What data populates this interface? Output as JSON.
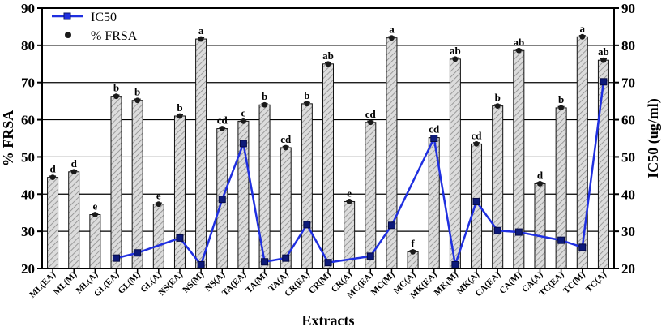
{
  "chart_data": {
    "type": "bar",
    "xlabel": "Extracts",
    "ylabel": "% FRSA",
    "y2label": "IC50 (ug/ml)",
    "ylim": [
      20,
      90
    ],
    "y2lim": [
      20,
      90
    ],
    "yticks": [
      "20",
      "30",
      "40",
      "50",
      "60",
      "70",
      "80",
      "90"
    ],
    "y2ticks": [
      "20",
      "30",
      "40",
      "50",
      "60",
      "70",
      "80",
      "90"
    ],
    "grid": true,
    "legend_placement": "top-left",
    "categories": [
      "ML(EA)",
      "ML(M)",
      "ML(A)",
      "GL(EA)",
      "GL(M)",
      "GL(A)",
      "NS(EA)",
      "NS(M)",
      "NS(A)",
      "TA(EA)",
      "TA(M)",
      "TA(A)",
      "CR(EA)",
      "CR(M)",
      "CR(A)",
      "MC(EA)",
      "MC(M)",
      "MC(A)",
      "MK(EA)",
      "MK(M)",
      "MK(A)",
      "CA(EA)",
      "CA(M)",
      "CA(A)",
      "TC(EA)",
      "TC(M)",
      "TC(A)"
    ],
    "series": [
      {
        "name": "% FRSA",
        "type": "bar",
        "values": [
          44.5,
          46,
          34.5,
          66.3,
          65.2,
          37.3,
          61,
          81.7,
          57.6,
          59.6,
          64,
          52.5,
          64.3,
          75,
          38,
          59.3,
          82,
          24.5,
          55.2,
          76.3,
          53.5,
          63.7,
          78.6,
          42.8,
          63.2,
          82.3,
          76
        ],
        "significance": [
          "d",
          "d",
          "e",
          "b",
          "b",
          "e",
          "b",
          "a",
          "cd",
          "c",
          "b",
          "cd",
          "b",
          "ab",
          "e",
          "cd",
          "a",
          "f",
          "cd",
          "ab",
          "cd",
          "b",
          "ab",
          "d",
          "b",
          "a",
          "ab"
        ]
      },
      {
        "name": "IC50",
        "type": "line",
        "points": [
          [
            "GL(EA)",
            22.8
          ],
          [
            "GL(M)",
            24.2
          ],
          [
            "NS(EA)",
            28.2
          ],
          [
            "NS(M)",
            21
          ],
          [
            "NS(A)",
            38.6
          ],
          [
            "TA(EA)",
            53.6
          ],
          [
            "TA(M)",
            21.8
          ],
          [
            "TA(A)",
            22.8
          ],
          [
            "CR(EA)",
            31.8
          ],
          [
            "CR(M)",
            21.6
          ],
          [
            "MC(EA)",
            23.3
          ],
          [
            "MC(M)",
            31.6
          ],
          [
            "MK(EA)",
            55
          ],
          [
            "MK(M)",
            21
          ],
          [
            "MK(A)",
            38
          ],
          [
            "CA(EA)",
            30.2
          ],
          [
            "CA(M)",
            29.8
          ],
          [
            "TC(EA)",
            27.6
          ],
          [
            "TC(M)",
            25.7
          ],
          [
            "TC(A)",
            70.2
          ]
        ]
      }
    ],
    "colors": {
      "line": "#1f2fe0",
      "bar_fill": "#d9d9d9",
      "bar_hatch": "#777777",
      "marker": "#1a1a1a"
    }
  }
}
